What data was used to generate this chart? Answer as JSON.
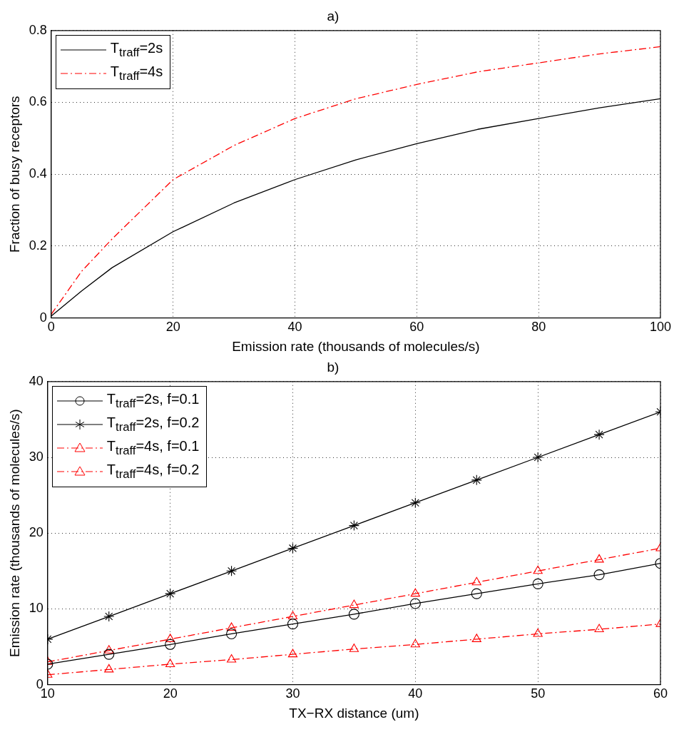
{
  "chart_data": [
    {
      "type": "line",
      "title": "a)",
      "xlabel": "Emission rate (thousands of molecules/s)",
      "ylabel": "Fraction of busy receptors",
      "x": [
        0,
        5,
        10,
        20,
        30,
        40,
        50,
        60,
        70,
        80,
        90,
        100
      ],
      "series": [
        {
          "name": "T$_{traff}$=2s",
          "color": "#000000",
          "line_style": "solid",
          "values": [
            0.005,
            0.075,
            0.14,
            0.24,
            0.32,
            0.385,
            0.44,
            0.485,
            0.525,
            0.555,
            0.585,
            0.61
          ]
        },
        {
          "name": "T$_{traff}$=4s",
          "color": "#ff0000",
          "line_style": "dashed",
          "values": [
            0.01,
            0.13,
            0.22,
            0.385,
            0.48,
            0.555,
            0.61,
            0.65,
            0.685,
            0.71,
            0.735,
            0.755
          ]
        }
      ],
      "xlim": [
        0,
        100
      ],
      "xticks": [
        0,
        20,
        40,
        60,
        80,
        100
      ],
      "ylim": [
        0,
        0.8
      ],
      "yticks": [
        0,
        0.2,
        0.4,
        0.6,
        0.8
      ],
      "grid": true,
      "legend": "top left",
      "marker": "none"
    },
    {
      "type": "line",
      "title": "b)",
      "xlabel": "TX−RX distance (um)",
      "ylabel": "Emission rate (thousands of molecules/s)",
      "x": [
        10,
        15,
        20,
        25,
        30,
        35,
        40,
        45,
        50,
        55,
        60
      ],
      "series": [
        {
          "name": "T$_{traff}$=2s, f=0.1",
          "color": "#000000",
          "line_style": "solid",
          "marker": "circle",
          "values": [
            2.7,
            4,
            5.3,
            6.7,
            8,
            9.3,
            10.7,
            12,
            13.3,
            14.5,
            16
          ]
        },
        {
          "name": "T$_{traff}$=2s, f=0.2",
          "color": "#000000",
          "line_style": "solid",
          "marker": "cross",
          "values": [
            6,
            9,
            12,
            15,
            18,
            21,
            24,
            27,
            30,
            33,
            36
          ]
        },
        {
          "name": "T$_{traff}$=4s, f=0.1",
          "color": "#ff0000",
          "line_style": "dashed",
          "marker": "triangle",
          "values": [
            1.3,
            2,
            2.7,
            3.3,
            4,
            4.7,
            5.3,
            6,
            6.7,
            7.3,
            8
          ]
        },
        {
          "name": "T$_{traff}$=4s, f=0.2",
          "color": "#ff0000",
          "line_style": "dashed",
          "marker": "triangle",
          "values": [
            3,
            4.5,
            6,
            7.5,
            9,
            10.5,
            12,
            13.5,
            15,
            16.5,
            18
          ]
        }
      ],
      "xlim": [
        10,
        60
      ],
      "xticks": [
        10,
        20,
        30,
        40,
        50,
        60
      ],
      "ylim": [
        0,
        40
      ],
      "yticks": [
        0,
        10,
        20,
        30,
        40
      ],
      "grid": true,
      "legend": "top left"
    }
  ]
}
